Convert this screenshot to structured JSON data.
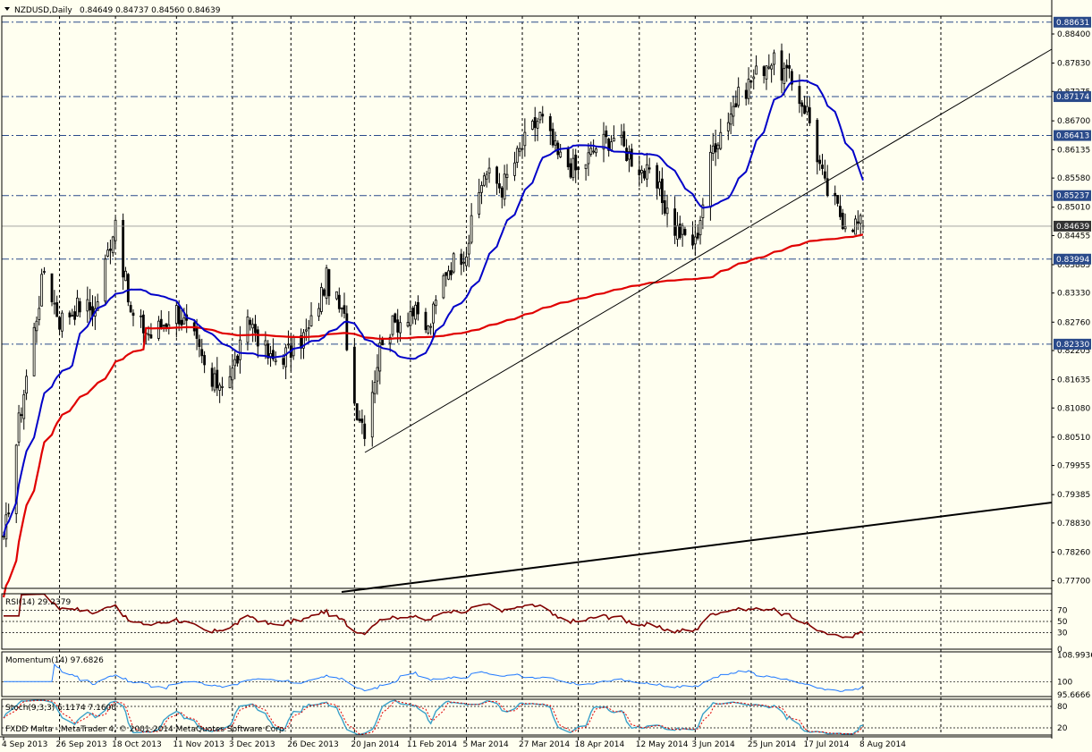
{
  "header": {
    "symbol": "NZDUSD,Daily",
    "ohlc": "0.84649 0.84737 0.84560 0.84639"
  },
  "footer": {
    "copyright": "FXDD Malta - MetaTrader 4, © 2001-2014 MetaQuotes Software Corp."
  },
  "colors": {
    "background": "#fffff0",
    "ma_fast": "#0000c8",
    "ma_slow": "#e00000",
    "rsi": "#800000",
    "momentum": "#1e78ff",
    "stoch_main": "#3aa0c8",
    "stoch_signal": "#e00000",
    "level_line": "#2a4a8a",
    "last_price_box": "#333333"
  },
  "chart_data": [
    {
      "type": "candlestick",
      "title": "NZDUSD,Daily",
      "price_ticks": [
        "0.88400",
        "0.87830",
        "0.87275",
        "0.86700",
        "0.86135",
        "0.85580",
        "0.85010",
        "0.84455",
        "0.83885",
        "0.83330",
        "0.82760",
        "0.82205",
        "0.81635",
        "0.81080",
        "0.80510",
        "0.79955",
        "0.79385",
        "0.78830",
        "0.78260",
        "0.77700"
      ],
      "ylim": [
        0.7755,
        0.8875
      ],
      "highlighted_levels": [
        "0.88631",
        "0.87174",
        "0.86413",
        "0.85237",
        "0.83994",
        "0.82330"
      ],
      "last_price": "0.84639",
      "x_tick_labels": [
        "4 Sep 2013",
        "26 Sep 2013",
        "18 Oct 2013",
        "11 Nov 2013",
        "3 Dec 2013",
        "26 Dec 2013",
        "20 Jan 2014",
        "11 Feb 2014",
        "5 Mar 2014",
        "27 Mar 2014",
        "18 Apr 2014",
        "12 May 2014",
        "3 Jun 2014",
        "25 Jun 2014",
        "17 Jul 2014",
        "8 Aug 2014"
      ],
      "close_path": [
        {
          "date": "4 Sep 2013",
          "close": 0.784
        },
        {
          "date": "10 Sep 2013",
          "close": 0.808
        },
        {
          "date": "20 Sep 2013",
          "close": 0.838
        },
        {
          "date": "26 Sep 2013",
          "close": 0.828
        },
        {
          "date": "4 Oct 2013",
          "close": 0.831
        },
        {
          "date": "10 Oct 2013",
          "close": 0.83
        },
        {
          "date": "18 Oct 2013",
          "close": 0.848
        },
        {
          "date": "24 Oct 2013",
          "close": 0.829
        },
        {
          "date": "1 Nov 2013",
          "close": 0.825
        },
        {
          "date": "11 Nov 2013",
          "close": 0.83
        },
        {
          "date": "18 Nov 2013",
          "close": 0.824
        },
        {
          "date": "25 Nov 2013",
          "close": 0.815
        },
        {
          "date": "3 Dec 2013",
          "close": 0.818
        },
        {
          "date": "10 Dec 2013",
          "close": 0.828
        },
        {
          "date": "18 Dec 2013",
          "close": 0.82
        },
        {
          "date": "26 Dec 2013",
          "close": 0.822
        },
        {
          "date": "2 Jan 2014",
          "close": 0.826
        },
        {
          "date": "9 Jan 2014",
          "close": 0.836
        },
        {
          "date": "16 Jan 2014",
          "close": 0.828
        },
        {
          "date": "20 Jan 2014",
          "close": 0.812
        },
        {
          "date": "24 Jan 2014",
          "close": 0.807
        },
        {
          "date": "31 Jan 2014",
          "close": 0.825
        },
        {
          "date": "11 Feb 2014",
          "close": 0.83
        },
        {
          "date": "18 Feb 2014",
          "close": 0.826
        },
        {
          "date": "25 Feb 2014",
          "close": 0.838
        },
        {
          "date": "5 Mar 2014",
          "close": 0.842
        },
        {
          "date": "12 Mar 2014",
          "close": 0.857
        },
        {
          "date": "19 Mar 2014",
          "close": 0.854
        },
        {
          "date": "27 Mar 2014",
          "close": 0.862
        },
        {
          "date": "3 Apr 2014",
          "close": 0.868
        },
        {
          "date": "10 Apr 2014",
          "close": 0.86
        },
        {
          "date": "18 Apr 2014",
          "close": 0.857
        },
        {
          "date": "25 Apr 2014",
          "close": 0.862
        },
        {
          "date": "2 May 2014",
          "close": 0.864
        },
        {
          "date": "12 May 2014",
          "close": 0.858
        },
        {
          "date": "19 May 2014",
          "close": 0.854
        },
        {
          "date": "26 May 2014",
          "close": 0.846
        },
        {
          "date": "3 Jun 2014",
          "close": 0.843
        },
        {
          "date": "10 Jun 2014",
          "close": 0.862
        },
        {
          "date": "18 Jun 2014",
          "close": 0.87
        },
        {
          "date": "25 Jun 2014",
          "close": 0.875
        },
        {
          "date": "2 Jul 2014",
          "close": 0.879
        },
        {
          "date": "9 Jul 2014",
          "close": 0.876
        },
        {
          "date": "17 Jul 2014",
          "close": 0.869
        },
        {
          "date": "24 Jul 2014",
          "close": 0.854
        },
        {
          "date": "31 Jul 2014",
          "close": 0.848
        },
        {
          "date": "8 Aug 2014",
          "close": 0.8464
        }
      ]
    },
    {
      "type": "line",
      "title": "RSI(14) 29.2379",
      "ticks": [
        "70",
        "50",
        "30",
        "0"
      ],
      "ylim": [
        0,
        100
      ]
    },
    {
      "type": "line",
      "title": "Momentum(14) 97.6826",
      "ticks": [
        "108.9936",
        "100",
        "95.6666"
      ]
    },
    {
      "type": "line",
      "title": "Stoch(9,3,3) 6.1174 7.1600",
      "ticks": [
        "80",
        "20"
      ],
      "ylim": [
        0,
        100
      ]
    }
  ]
}
